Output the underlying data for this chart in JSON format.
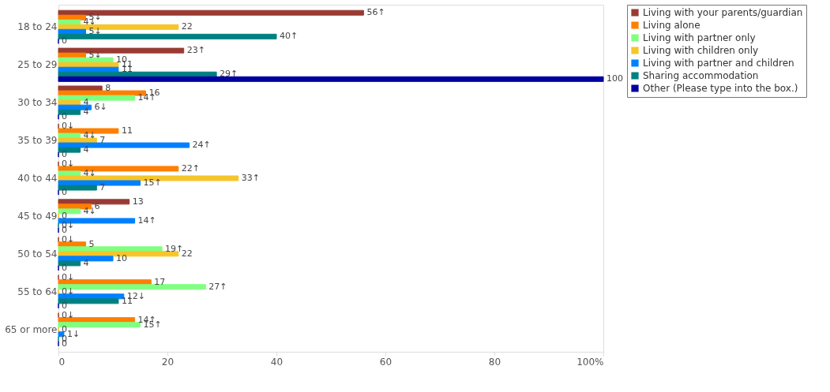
{
  "chart_data": {
    "type": "bar",
    "orientation": "horizontal",
    "categories": [
      "18 to 24",
      "25 to 29",
      "30 to 34",
      "35 to 39",
      "40 to 44",
      "45 to 49",
      "50 to 54",
      "55 to 64",
      "65 or more"
    ],
    "series": [
      {
        "name": "Living with your parents/guardian",
        "color": "#993b33",
        "values": [
          56,
          23,
          8,
          0,
          0,
          13,
          0,
          0,
          0
        ],
        "value_labels": [
          "56↑",
          "23↑",
          "8",
          "0↓",
          "0↓",
          "13",
          "0↓",
          "0↓",
          "0↓"
        ]
      },
      {
        "name": "Living alone",
        "color": "#ff7f00",
        "values": [
          5,
          5,
          16,
          11,
          22,
          6,
          5,
          17,
          14
        ],
        "value_labels": [
          "5↓",
          "5↓",
          "16",
          "11",
          "22↑",
          "6",
          "5",
          "17",
          "14↑"
        ]
      },
      {
        "name": "Living with partner only",
        "color": "#80ff80",
        "values": [
          4,
          10,
          14,
          4,
          4,
          4,
          19,
          27,
          15
        ],
        "value_labels": [
          "4↓",
          "10",
          "14↑",
          "4↓",
          "4↓",
          "4↓",
          "19↑",
          "27↑",
          "15↑"
        ]
      },
      {
        "name": "Living with children only",
        "color": "#f5c52a",
        "values": [
          22,
          11,
          4,
          7,
          33,
          0,
          22,
          0,
          0
        ],
        "value_labels": [
          "22",
          "11",
          "4",
          "7",
          "33↑",
          "0",
          "22",
          "0↓",
          "0"
        ]
      },
      {
        "name": "Living with partner and children",
        "color": "#0080ff",
        "values": [
          5,
          11,
          6,
          24,
          15,
          14,
          10,
          12,
          1
        ],
        "value_labels": [
          "5↓",
          "11",
          "6↓",
          "24↑",
          "15↑",
          "14↑",
          "10",
          "12↓",
          "1↓"
        ]
      },
      {
        "name": "Sharing accommodation",
        "color": "#008080",
        "values": [
          40,
          29,
          4,
          4,
          7,
          0,
          4,
          11,
          0
        ],
        "value_labels": [
          "40↑",
          "29↑",
          "4",
          "4",
          "7",
          "0↓",
          "4",
          "11",
          "0"
        ]
      },
      {
        "name": "Other (Please type into the box.)",
        "color": "#0000a0",
        "values": [
          0,
          100,
          0,
          0,
          0,
          0,
          0,
          0,
          0
        ],
        "value_labels": [
          "0",
          "100",
          "0",
          "0",
          "0",
          "0",
          "0",
          "0",
          "0"
        ]
      }
    ],
    "xlim": [
      0,
      100
    ],
    "xticks": [
      0,
      20,
      40,
      60,
      80,
      {
        "value": 100,
        "label": "100%"
      }
    ],
    "grid": false,
    "legend": "right"
  }
}
